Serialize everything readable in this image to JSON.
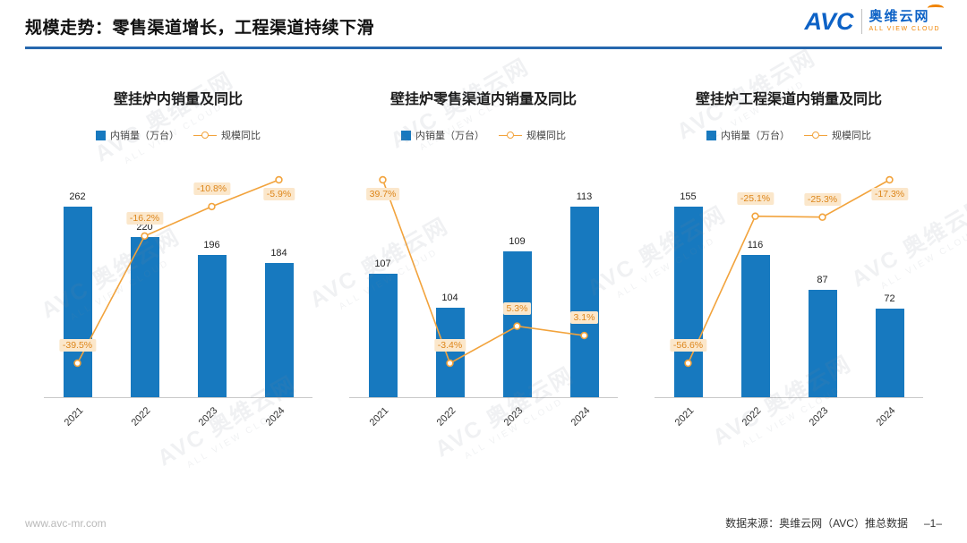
{
  "header": {
    "title": "规模走势：零售渠道增长，工程渠道持续下滑",
    "logo": {
      "abbr": "AVC",
      "name_cn": "奥维云网",
      "name_en": "ALL VIEW CLOUD"
    }
  },
  "legend": {
    "bar_label": "内销量（万台）",
    "line_label": "规模同比"
  },
  "colors": {
    "bar": "#1779BF",
    "line": "#F2A33C",
    "accent": "#2667AE",
    "pct_bg": "#FBE7CB",
    "pct_text": "#DD861B"
  },
  "watermark": {
    "line1": "AVC 奥维云网",
    "line2": "ALL VIEW CLOUD"
  },
  "footer": {
    "site": "www.avc-mr.com",
    "source": "数据来源：奥维云网（AVC）推总数据",
    "page": "–1–"
  },
  "chart_data": [
    {
      "type": "bar+line",
      "title": "壁挂炉内销量及同比",
      "categories": [
        "2021",
        "2022",
        "2023",
        "2024"
      ],
      "bar_axis_min": 0,
      "legend_position": "top",
      "grid": false,
      "series": [
        {
          "name": "内销量（万台）",
          "type": "bar",
          "values": [
            262,
            220,
            196,
            184
          ]
        },
        {
          "name": "规模同比",
          "type": "line",
          "unit": "%",
          "values": [
            -39.5,
            -16.2,
            -10.8,
            -5.9
          ]
        }
      ]
    },
    {
      "type": "bar+line",
      "title": "壁挂炉零售渠道内销量及同比",
      "categories": [
        "2021",
        "2022",
        "2023",
        "2024"
      ],
      "bar_axis_min": 96,
      "legend_position": "top",
      "grid": false,
      "series": [
        {
          "name": "内销量（万台）",
          "type": "bar",
          "values": [
            107,
            104,
            109,
            113
          ]
        },
        {
          "name": "规模同比",
          "type": "line",
          "unit": "%",
          "values": [
            39.7,
            -3.4,
            5.3,
            3.1
          ]
        }
      ]
    },
    {
      "type": "bar+line",
      "title": "壁挂炉工程渠道内销量及同比",
      "categories": [
        "2021",
        "2022",
        "2023",
        "2024"
      ],
      "bar_axis_min": 0,
      "legend_position": "top",
      "grid": false,
      "series": [
        {
          "name": "内销量（万台）",
          "type": "bar",
          "values": [
            155,
            116,
            87,
            72
          ]
        },
        {
          "name": "规模同比",
          "type": "line",
          "unit": "%",
          "values": [
            -56.6,
            -25.1,
            -25.3,
            -17.3
          ]
        }
      ]
    }
  ]
}
